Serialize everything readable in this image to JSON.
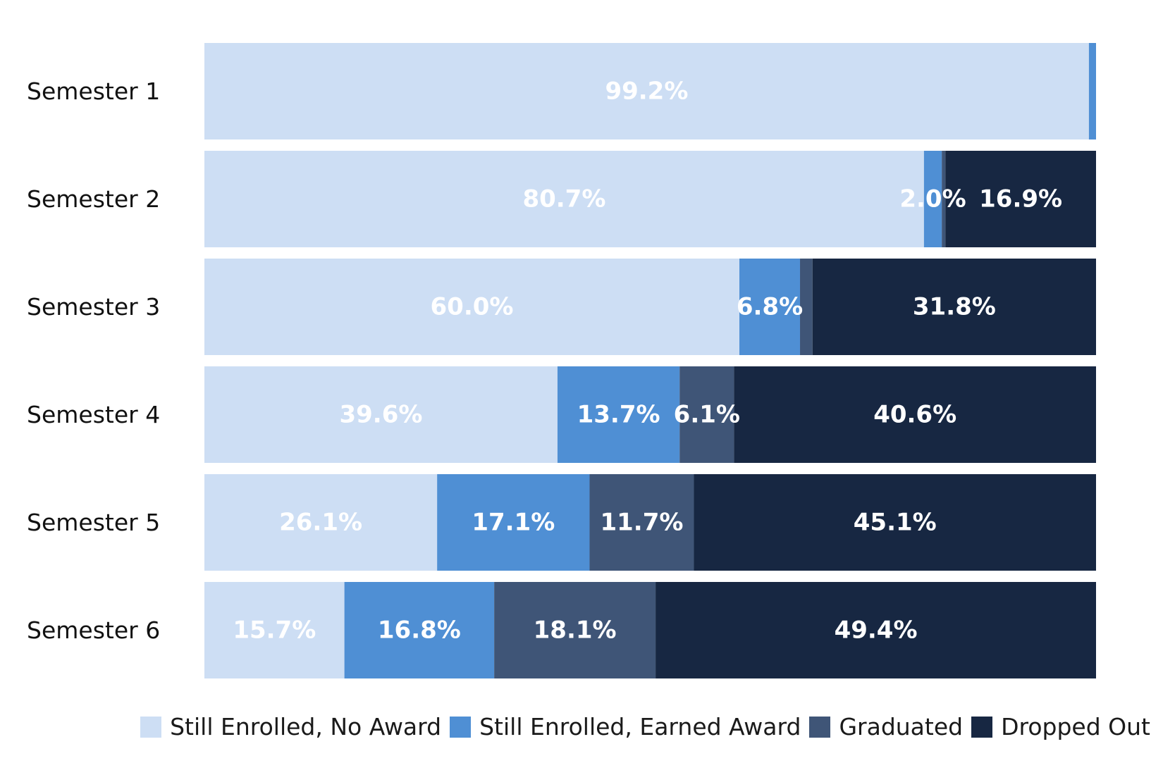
{
  "chart_data": {
    "type": "bar",
    "orientation": "horizontal",
    "stacked": true,
    "categories": [
      "Semester 1",
      "Semester 2",
      "Semester 3",
      "Semester 4",
      "Semester 5",
      "Semester 6"
    ],
    "series": [
      {
        "name": "Still Enrolled, No Award",
        "color": "#cddef4",
        "values": [
          99.2,
          80.7,
          60.0,
          39.6,
          26.1,
          15.7
        ],
        "labels": [
          "99.2%",
          "80.7%",
          "60.0%",
          "39.6%",
          "26.1%",
          "15.7%"
        ]
      },
      {
        "name": "Still Enrolled, Earned Award",
        "color": "#4f8fd4",
        "values": [
          0.8,
          2.0,
          6.8,
          13.7,
          17.1,
          16.8
        ],
        "labels": [
          "",
          "2.0%",
          "6.8%",
          "13.7%",
          "17.1%",
          "16.8%"
        ]
      },
      {
        "name": "Graduated",
        "color": "#3f5577",
        "values": [
          0.0,
          0.4,
          1.4,
          6.1,
          11.7,
          18.1
        ],
        "labels": [
          "",
          "",
          "",
          "6.1%",
          "11.7%",
          "18.1%"
        ]
      },
      {
        "name": "Dropped Out",
        "color": "#172742",
        "values": [
          0.0,
          16.9,
          31.8,
          40.6,
          45.1,
          49.4
        ],
        "labels": [
          "",
          "16.9%",
          "31.8%",
          "40.6%",
          "45.1%",
          "49.4%"
        ]
      }
    ],
    "xlim": [
      0,
      100
    ],
    "title": "",
    "xlabel": "",
    "ylabel": "",
    "grid": false,
    "legend_position": "bottom"
  }
}
